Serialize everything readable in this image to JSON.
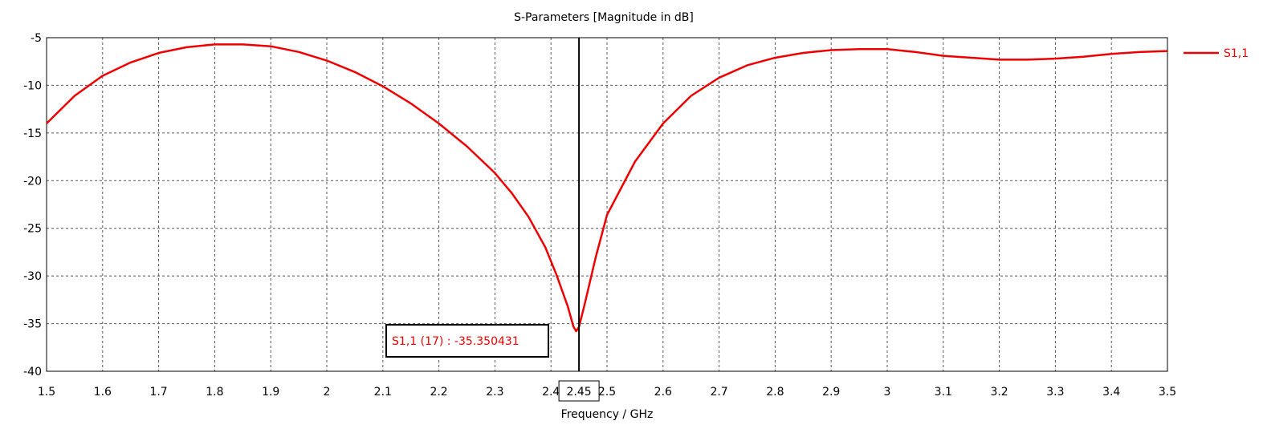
{
  "chart_data": {
    "type": "line",
    "title": "S-Parameters [Magnitude in dB]",
    "xlabel": "Frequency / GHz",
    "ylabel": "",
    "xlim": [
      1.5,
      3.5
    ],
    "ylim": [
      -40,
      -5
    ],
    "xticks": [
      1.5,
      1.6,
      1.7,
      1.8,
      1.9,
      2,
      2.1,
      2.2,
      2.3,
      2.4,
      2.5,
      2.6,
      2.7,
      2.8,
      2.9,
      3,
      3.1,
      3.2,
      3.3,
      3.4,
      3.5
    ],
    "yticks": [
      -5,
      -10,
      -15,
      -20,
      -25,
      -30,
      -35,
      -40
    ],
    "grid": true,
    "legend_position": "right",
    "series": [
      {
        "name": "S1,1",
        "color": "#ee0000",
        "x": [
          1.5,
          1.55,
          1.6,
          1.65,
          1.7,
          1.75,
          1.8,
          1.85,
          1.9,
          1.95,
          2.0,
          2.05,
          2.1,
          2.15,
          2.2,
          2.25,
          2.3,
          2.33,
          2.36,
          2.39,
          2.41,
          2.43,
          2.44,
          2.445,
          2.45,
          2.46,
          2.48,
          2.5,
          2.55,
          2.6,
          2.65,
          2.7,
          2.75,
          2.8,
          2.85,
          2.9,
          2.95,
          3.0,
          3.05,
          3.1,
          3.15,
          3.2,
          3.25,
          3.3,
          3.35,
          3.4,
          3.45,
          3.5
        ],
        "y": [
          -14.0,
          -11.1,
          -9.0,
          -7.6,
          -6.6,
          -6.0,
          -5.7,
          -5.7,
          -5.9,
          -6.5,
          -7.4,
          -8.6,
          -10.1,
          -11.9,
          -14.0,
          -16.4,
          -19.2,
          -21.3,
          -23.8,
          -27.0,
          -29.9,
          -33.2,
          -35.3,
          -35.8,
          -35.35,
          -33.0,
          -28.0,
          -23.6,
          -18.0,
          -14.0,
          -11.1,
          -9.2,
          -7.9,
          -7.1,
          -6.6,
          -6.3,
          -6.2,
          -6.2,
          -6.5,
          -6.9,
          -7.1,
          -7.3,
          -7.3,
          -7.2,
          -7.0,
          -6.7,
          -6.5,
          -6.4
        ]
      }
    ],
    "marker": {
      "x": 2.45,
      "x_label": "2.45",
      "label": "S1,1 (17) : -35.350431"
    }
  }
}
